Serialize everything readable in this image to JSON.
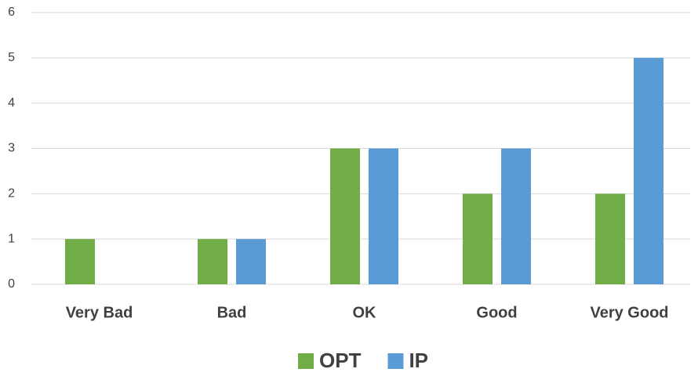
{
  "chart_data": {
    "type": "bar",
    "categories": [
      "Very Bad",
      "Bad",
      "OK",
      "Good",
      "Very Good"
    ],
    "series": [
      {
        "name": "OPT",
        "color": "#70ad47",
        "values": [
          1,
          1,
          3,
          2,
          2
        ]
      },
      {
        "name": "IP",
        "color": "#5b9bd5",
        "values": [
          0,
          1,
          3,
          3,
          5
        ]
      }
    ],
    "ylim": [
      0,
      6
    ],
    "yticks": [
      0,
      1,
      2,
      3,
      4,
      5,
      6
    ],
    "grid": true,
    "legend": "bottom"
  }
}
